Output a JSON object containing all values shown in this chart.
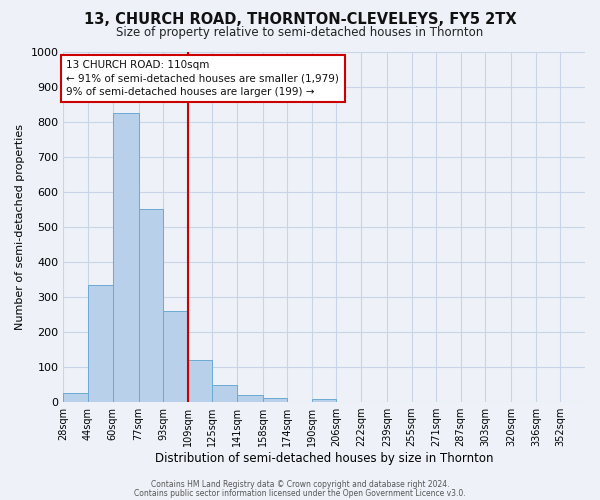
{
  "title": "13, CHURCH ROAD, THORNTON-CLEVELEYS, FY5 2TX",
  "subtitle": "Size of property relative to semi-detached houses in Thornton",
  "xlabel": "Distribution of semi-detached houses by size in Thornton",
  "ylabel": "Number of semi-detached properties",
  "bin_labels": [
    "28sqm",
    "44sqm",
    "60sqm",
    "77sqm",
    "93sqm",
    "109sqm",
    "125sqm",
    "141sqm",
    "158sqm",
    "174sqm",
    "190sqm",
    "206sqm",
    "222sqm",
    "239sqm",
    "255sqm",
    "271sqm",
    "287sqm",
    "303sqm",
    "320sqm",
    "336sqm",
    "352sqm"
  ],
  "bin_edges": [
    28,
    44,
    60,
    77,
    93,
    109,
    125,
    141,
    158,
    174,
    190,
    206,
    222,
    239,
    255,
    271,
    287,
    303,
    320,
    336,
    352,
    368
  ],
  "bar_values": [
    25,
    335,
    825,
    550,
    260,
    120,
    48,
    20,
    12,
    0,
    8,
    0,
    0,
    0,
    0,
    0,
    0,
    0,
    0,
    0,
    0
  ],
  "bar_color": "#b8d0ea",
  "bar_edge_color": "#6aaad4",
  "grid_color": "#c8d4e8",
  "background_color": "#eef2f8",
  "property_line_x": 109,
  "property_line_color": "#cc0000",
  "annotation_text": "13 CHURCH ROAD: 110sqm\n← 91% of semi-detached houses are smaller (1,979)\n9% of semi-detached houses are larger (199) →",
  "annotation_box_color": "#ffffff",
  "annotation_box_edge": "#cc0000",
  "ylim": [
    0,
    1000
  ],
  "yticks": [
    0,
    100,
    200,
    300,
    400,
    500,
    600,
    700,
    800,
    900,
    1000
  ],
  "footer1": "Contains HM Land Registry data © Crown copyright and database right 2024.",
  "footer2": "Contains public sector information licensed under the Open Government Licence v3.0."
}
